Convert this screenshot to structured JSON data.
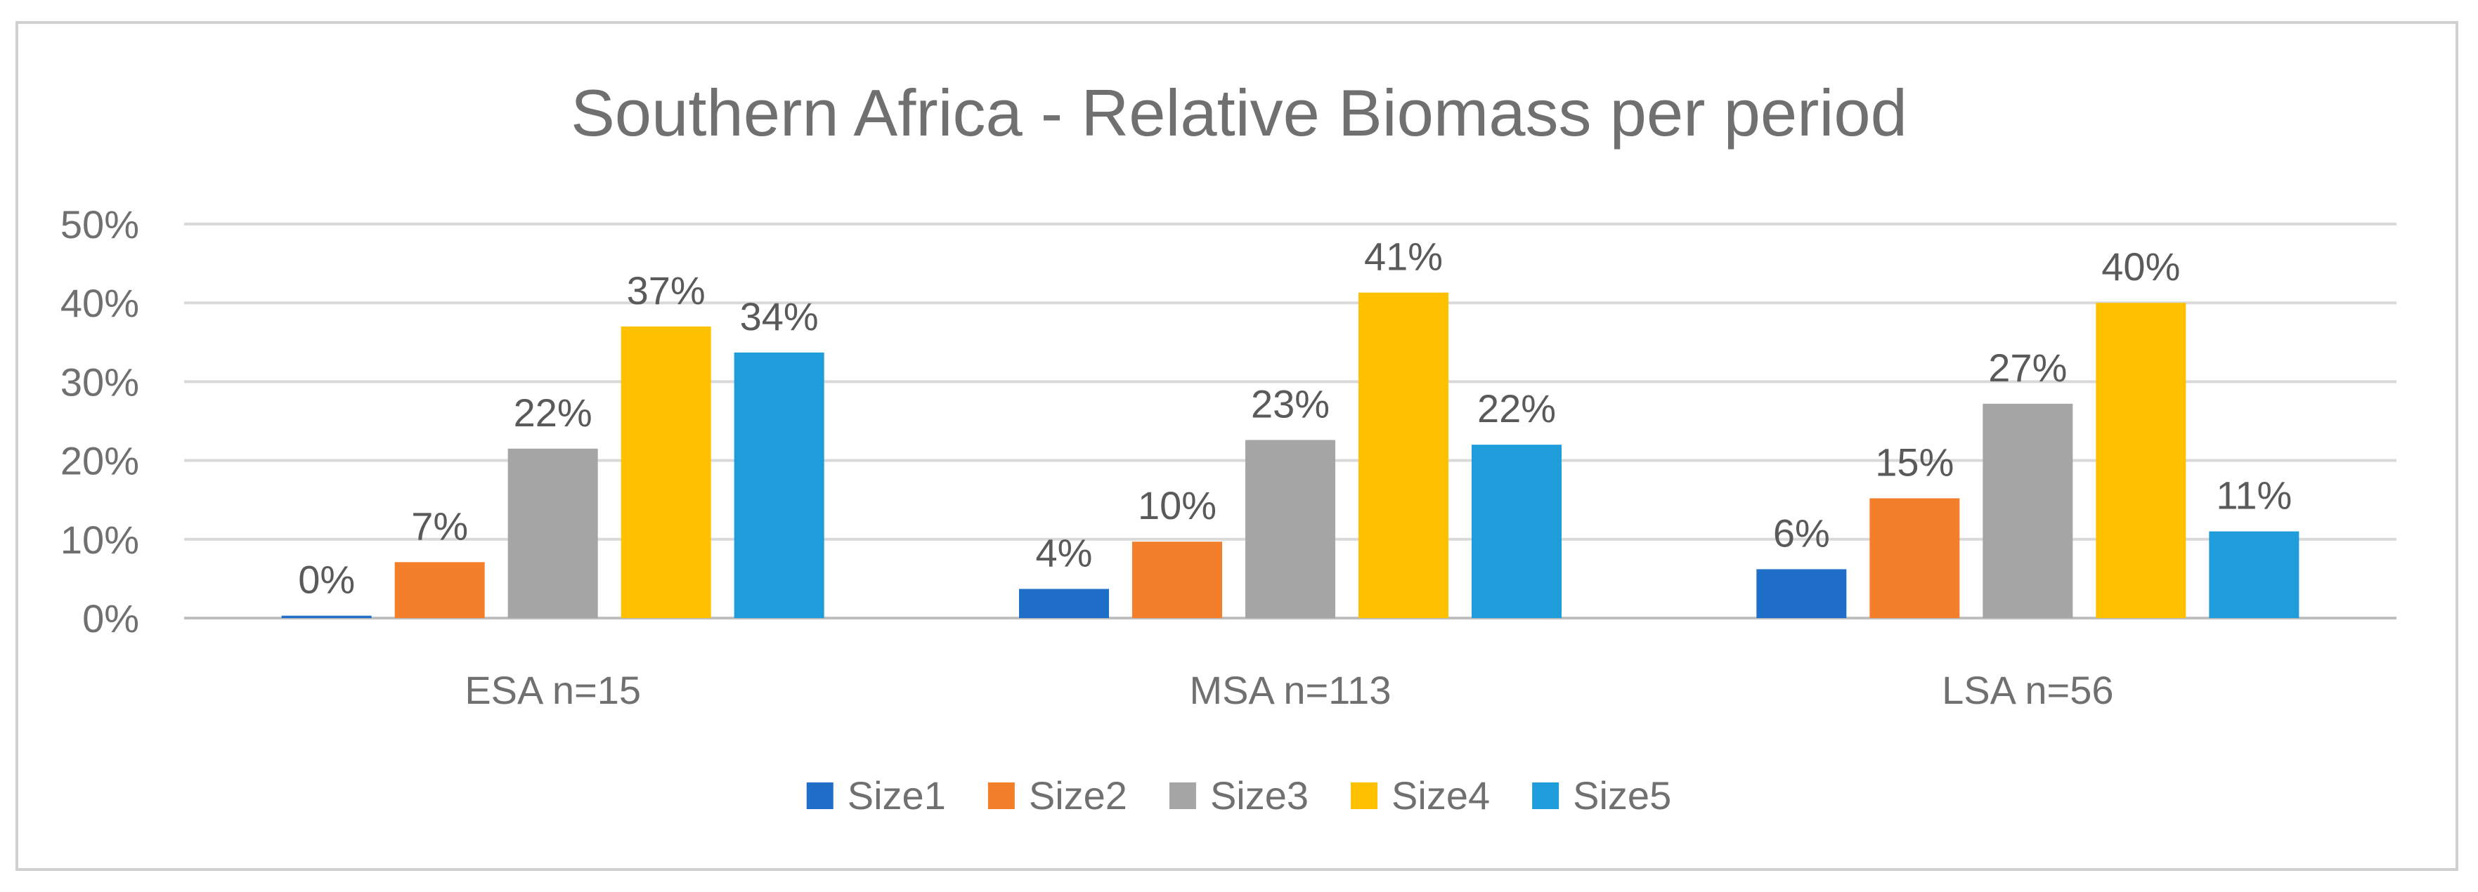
{
  "chart_data": {
    "type": "bar",
    "title": "Southern Africa - Relative Biomass per period",
    "xlabel": "",
    "ylabel": "",
    "ylim": [
      0,
      0.5
    ],
    "yticks": [
      0,
      0.1,
      0.2,
      0.3,
      0.4,
      0.5
    ],
    "ytick_labels": [
      "0%",
      "10%",
      "20%",
      "30%",
      "40%",
      "50%"
    ],
    "categories": [
      "ESA n=15",
      "MSA n=113",
      "LSA n=56"
    ],
    "series": [
      {
        "name": "Size1",
        "color": "#1f6fc9",
        "values": [
          0.003,
          0.037,
          0.062
        ],
        "labels": [
          "0%",
          "4%",
          "6%"
        ]
      },
      {
        "name": "Size2",
        "color": "#f47f2a",
        "values": [
          0.071,
          0.097,
          0.152
        ],
        "labels": [
          "7%",
          "10%",
          "15%"
        ]
      },
      {
        "name": "Size3",
        "color": "#a5a5a5",
        "values": [
          0.215,
          0.226,
          0.272
        ],
        "labels": [
          "22%",
          "23%",
          "27%"
        ]
      },
      {
        "name": "Size4",
        "color": "#ffc000",
        "values": [
          0.37,
          0.413,
          0.4
        ],
        "labels": [
          "37%",
          "41%",
          "40%"
        ]
      },
      {
        "name": "Size5",
        "color": "#1f9ddb",
        "values": [
          0.337,
          0.22,
          0.11
        ],
        "labels": [
          "34%",
          "22%",
          "11%"
        ]
      }
    ],
    "grid": true,
    "legend": "bottom"
  },
  "colors": {
    "gridline": "#d9d9d9",
    "axis": "#bfbfbf"
  }
}
